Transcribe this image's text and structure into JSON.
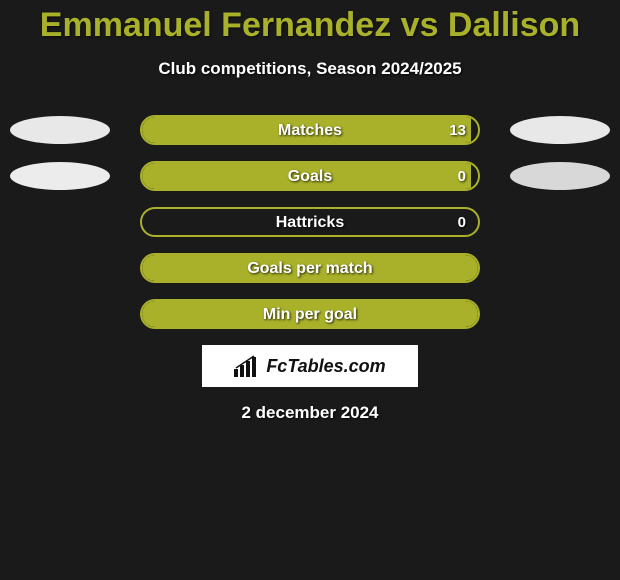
{
  "background_color": "#1a1a1a",
  "accent_color": "#a9b029",
  "text_color": "#ffffff",
  "title": "Emmanuel Fernandez vs Dallison",
  "title_fontsize": 34,
  "title_color": "#a9b029",
  "subtitle": "Club competitions, Season 2024/2025",
  "subtitle_fontsize": 17,
  "ellipse_colors": {
    "left_top": "#e8e8e8",
    "right_top": "#e8e8e8",
    "left_2": "#ececec",
    "right_2": "#d8d8d8"
  },
  "bar_border_color": "#a9b029",
  "bar_fill_color": "#a9b029",
  "stats": [
    {
      "label": "Matches",
      "value": "13",
      "fill_pct": 98,
      "show_left_ellipse": true,
      "show_right_ellipse": true,
      "show_value": true
    },
    {
      "label": "Goals",
      "value": "0",
      "fill_pct": 98,
      "show_left_ellipse": true,
      "show_right_ellipse": true,
      "show_value": true
    },
    {
      "label": "Hattricks",
      "value": "0",
      "fill_pct": 0,
      "show_left_ellipse": false,
      "show_right_ellipse": false,
      "show_value": true
    },
    {
      "label": "Goals per match",
      "value": "",
      "fill_pct": 100,
      "show_left_ellipse": false,
      "show_right_ellipse": false,
      "show_value": false
    },
    {
      "label": "Min per goal",
      "value": "",
      "fill_pct": 100,
      "show_left_ellipse": false,
      "show_right_ellipse": false,
      "show_value": false
    }
  ],
  "logo_text": "FcTables.com",
  "date_text": "2 december 2024"
}
